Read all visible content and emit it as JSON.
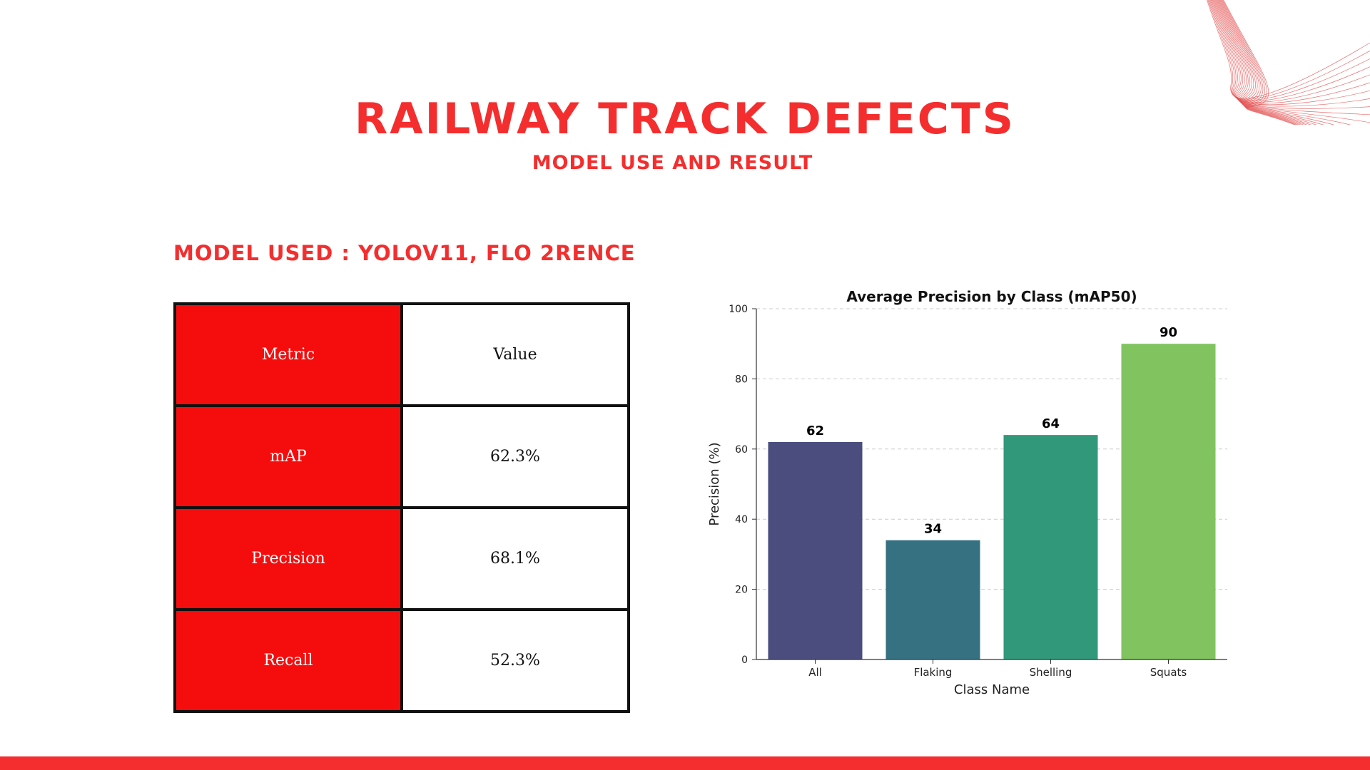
{
  "slide": {
    "title": "RAILWAY TRACK DEFECTS",
    "subtitle": "MODEL USE AND RESULT",
    "model_used": "MODEL USED : YOLOV11, FLO 2RENCE"
  },
  "table": {
    "header": {
      "metric": "Metric",
      "value": "Value"
    },
    "rows": [
      {
        "metric": "mAP",
        "value": "62.3%"
      },
      {
        "metric": "Precision",
        "value": "68.1%"
      },
      {
        "metric": "Recall",
        "value": "52.3%"
      }
    ]
  },
  "colors": {
    "accent": "#f42e2e",
    "table_key_fill": "#f50d0d",
    "bars": [
      "#4a4d7e",
      "#367182",
      "#32987a",
      "#80c35f"
    ]
  },
  "chart_data": {
    "type": "bar",
    "title": "Average Precision by Class (mAP50)",
    "xlabel": "Class Name",
    "ylabel": "Precision (%)",
    "categories": [
      "All",
      "Flaking",
      "Shelling",
      "Squats"
    ],
    "values": [
      62,
      34,
      64,
      90
    ],
    "data_labels": [
      "62",
      "34",
      "64",
      "90"
    ],
    "ylim": [
      0,
      100
    ],
    "yticks": [
      0,
      20,
      40,
      60,
      80,
      100
    ],
    "grid": "y-dashed"
  },
  "decoration": {
    "icon": "wave-lines-icon"
  }
}
